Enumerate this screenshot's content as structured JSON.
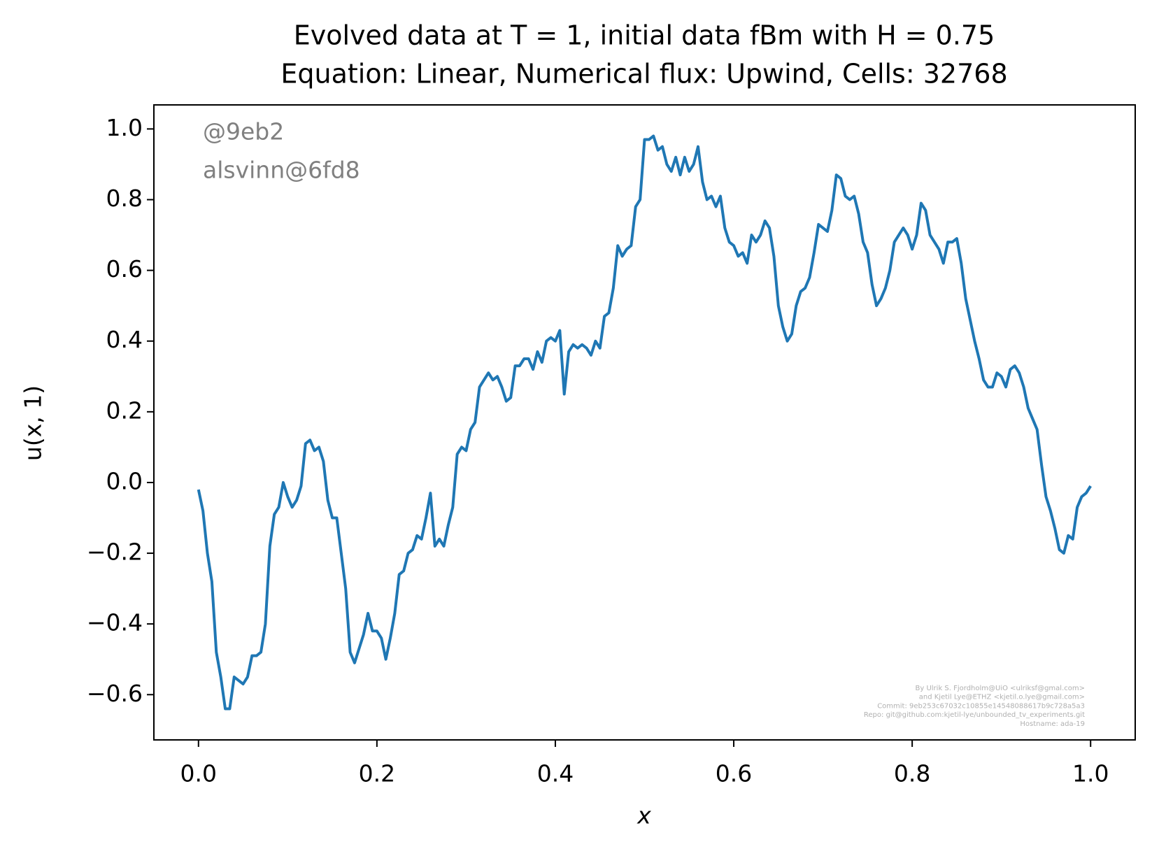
{
  "chart_data": {
    "type": "line",
    "title": "Evolved data at T = 1, initial data fBm with H = 0.75",
    "subtitle": "Equation: Linear, Numerical flux: Upwind, Cells: 32768",
    "xlabel": "x",
    "ylabel": "u(x, 1)",
    "annotations": [
      "@9eb2",
      "alsvinn@6fd8"
    ],
    "footer": [
      "By Ulrik S. Fjordholm@UiO <ulriksf@gmal.com>",
      "and Kjetil Lye@ETHZ <kjetil.o.lye@gmail.com>",
      "Commit: 9eb253c67032c10855e14548088617b9c728a5a3",
      "Repo: git@github.com:kjetil-lye/unbounded_tv_experiments.git",
      "Hostname: ada-19"
    ],
    "xlim": [
      -0.05,
      1.05
    ],
    "ylim": [
      -0.728,
      1.068
    ],
    "xticks": [
      {
        "value": 0,
        "label": "0.0"
      },
      0.2,
      0.4,
      0.6,
      0.8,
      {
        "value": 1,
        "label": "1.0"
      }
    ],
    "yticks": [
      {
        "value": -0.6,
        "label": "−0.6"
      },
      {
        "value": -0.4,
        "label": "−0.4"
      },
      {
        "value": -0.2,
        "label": "−0.2"
      },
      {
        "value": 0,
        "label": "0.0"
      },
      0.2,
      0.4,
      0.6,
      0.8,
      {
        "value": 1,
        "label": "1.0"
      }
    ],
    "x": [
      0,
      0.005,
      0.01,
      0.015,
      0.02,
      0.025,
      0.03,
      0.035,
      0.04,
      0.045,
      0.05,
      0.055,
      0.06,
      0.065,
      0.07,
      0.075,
      0.08,
      0.085,
      0.09,
      0.095,
      0.1,
      0.105,
      0.11,
      0.115,
      0.12,
      0.125,
      0.13,
      0.135,
      0.14,
      0.145,
      0.15,
      0.155,
      0.16,
      0.165,
      0.17,
      0.175,
      0.18,
      0.185,
      0.19,
      0.195,
      0.2,
      0.205,
      0.21,
      0.215,
      0.22,
      0.225,
      0.23,
      0.235,
      0.24,
      0.245,
      0.25,
      0.255,
      0.26,
      0.265,
      0.27,
      0.275,
      0.28,
      0.285,
      0.29,
      0.295,
      0.3,
      0.305,
      0.31,
      0.315,
      0.32,
      0.325,
      0.33,
      0.335,
      0.34,
      0.345,
      0.35,
      0.355,
      0.36,
      0.365,
      0.37,
      0.375,
      0.38,
      0.385,
      0.39,
      0.395,
      0.4,
      0.405,
      0.41,
      0.415,
      0.42,
      0.425,
      0.43,
      0.435,
      0.44,
      0.445,
      0.45,
      0.455,
      0.46,
      0.465,
      0.47,
      0.475,
      0.48,
      0.485,
      0.49,
      0.495,
      0.5,
      0.505,
      0.51,
      0.515,
      0.52,
      0.525,
      0.53,
      0.535,
      0.54,
      0.545,
      0.55,
      0.555,
      0.56,
      0.565,
      0.57,
      0.575,
      0.58,
      0.585,
      0.59,
      0.595,
      0.6,
      0.605,
      0.61,
      0.615,
      0.62,
      0.625,
      0.63,
      0.635,
      0.64,
      0.645,
      0.65,
      0.655,
      0.66,
      0.665,
      0.67,
      0.675,
      0.68,
      0.685,
      0.69,
      0.695,
      0.7,
      0.705,
      0.71,
      0.715,
      0.72,
      0.725,
      0.73,
      0.735,
      0.74,
      0.745,
      0.75,
      0.755,
      0.76,
      0.765,
      0.77,
      0.775,
      0.78,
      0.785,
      0.79,
      0.795,
      0.8,
      0.805,
      0.81,
      0.815,
      0.82,
      0.825,
      0.83,
      0.835,
      0.84,
      0.845,
      0.85,
      0.855,
      0.86,
      0.865,
      0.87,
      0.875,
      0.88,
      0.885,
      0.89,
      0.895,
      0.9,
      0.905,
      0.91,
      0.915,
      0.92,
      0.925,
      0.93,
      0.935,
      0.94,
      0.945,
      0.95,
      0.955,
      0.96,
      0.965,
      0.97,
      0.975,
      0.98,
      0.985,
      0.99,
      0.995,
      1
    ],
    "series": [
      {
        "color": "#1f77b4",
        "values": [
          -0.02,
          -0.08,
          -0.2,
          -0.28,
          -0.48,
          -0.55,
          -0.64,
          -0.64,
          -0.55,
          -0.56,
          -0.57,
          -0.55,
          -0.49,
          -0.49,
          -0.48,
          -0.4,
          -0.18,
          -0.09,
          -0.07,
          0.0,
          -0.04,
          -0.07,
          -0.05,
          -0.01,
          0.11,
          0.12,
          0.09,
          0.1,
          0.06,
          -0.05,
          -0.1,
          -0.1,
          -0.2,
          -0.3,
          -0.48,
          -0.51,
          -0.47,
          -0.43,
          -0.37,
          -0.42,
          -0.42,
          -0.44,
          -0.5,
          -0.44,
          -0.37,
          -0.26,
          -0.25,
          -0.2,
          -0.19,
          -0.15,
          -0.16,
          -0.1,
          -0.03,
          -0.18,
          -0.16,
          -0.18,
          -0.12,
          -0.07,
          0.08,
          0.1,
          0.09,
          0.15,
          0.17,
          0.27,
          0.29,
          0.31,
          0.29,
          0.3,
          0.27,
          0.23,
          0.24,
          0.33,
          0.33,
          0.35,
          0.35,
          0.32,
          0.37,
          0.34,
          0.4,
          0.41,
          0.4,
          0.43,
          0.25,
          0.37,
          0.39,
          0.38,
          0.39,
          0.38,
          0.36,
          0.4,
          0.38,
          0.47,
          0.48,
          0.55,
          0.67,
          0.64,
          0.66,
          0.67,
          0.78,
          0.8,
          0.97,
          0.97,
          0.98,
          0.94,
          0.95,
          0.9,
          0.88,
          0.92,
          0.87,
          0.92,
          0.88,
          0.9,
          0.95,
          0.85,
          0.8,
          0.81,
          0.78,
          0.81,
          0.72,
          0.68,
          0.67,
          0.64,
          0.65,
          0.62,
          0.7,
          0.68,
          0.7,
          0.74,
          0.72,
          0.64,
          0.5,
          0.44,
          0.4,
          0.42,
          0.5,
          0.54,
          0.55,
          0.58,
          0.65,
          0.73,
          0.72,
          0.71,
          0.77,
          0.87,
          0.86,
          0.81,
          0.8,
          0.81,
          0.76,
          0.68,
          0.65,
          0.56,
          0.5,
          0.52,
          0.55,
          0.6,
          0.68,
          0.7,
          0.72,
          0.7,
          0.66,
          0.7,
          0.79,
          0.77,
          0.7,
          0.68,
          0.66,
          0.62,
          0.68,
          0.68,
          0.69,
          0.62,
          0.52,
          0.46,
          0.4,
          0.35,
          0.29,
          0.27,
          0.27,
          0.31,
          0.3,
          0.27,
          0.32,
          0.33,
          0.31,
          0.27,
          0.21,
          0.18,
          0.15,
          0.05,
          -0.04,
          -0.08,
          -0.13,
          -0.19,
          -0.2,
          -0.15,
          -0.16,
          -0.07,
          -0.04,
          -0.03,
          -0.01
        ]
      }
    ]
  }
}
